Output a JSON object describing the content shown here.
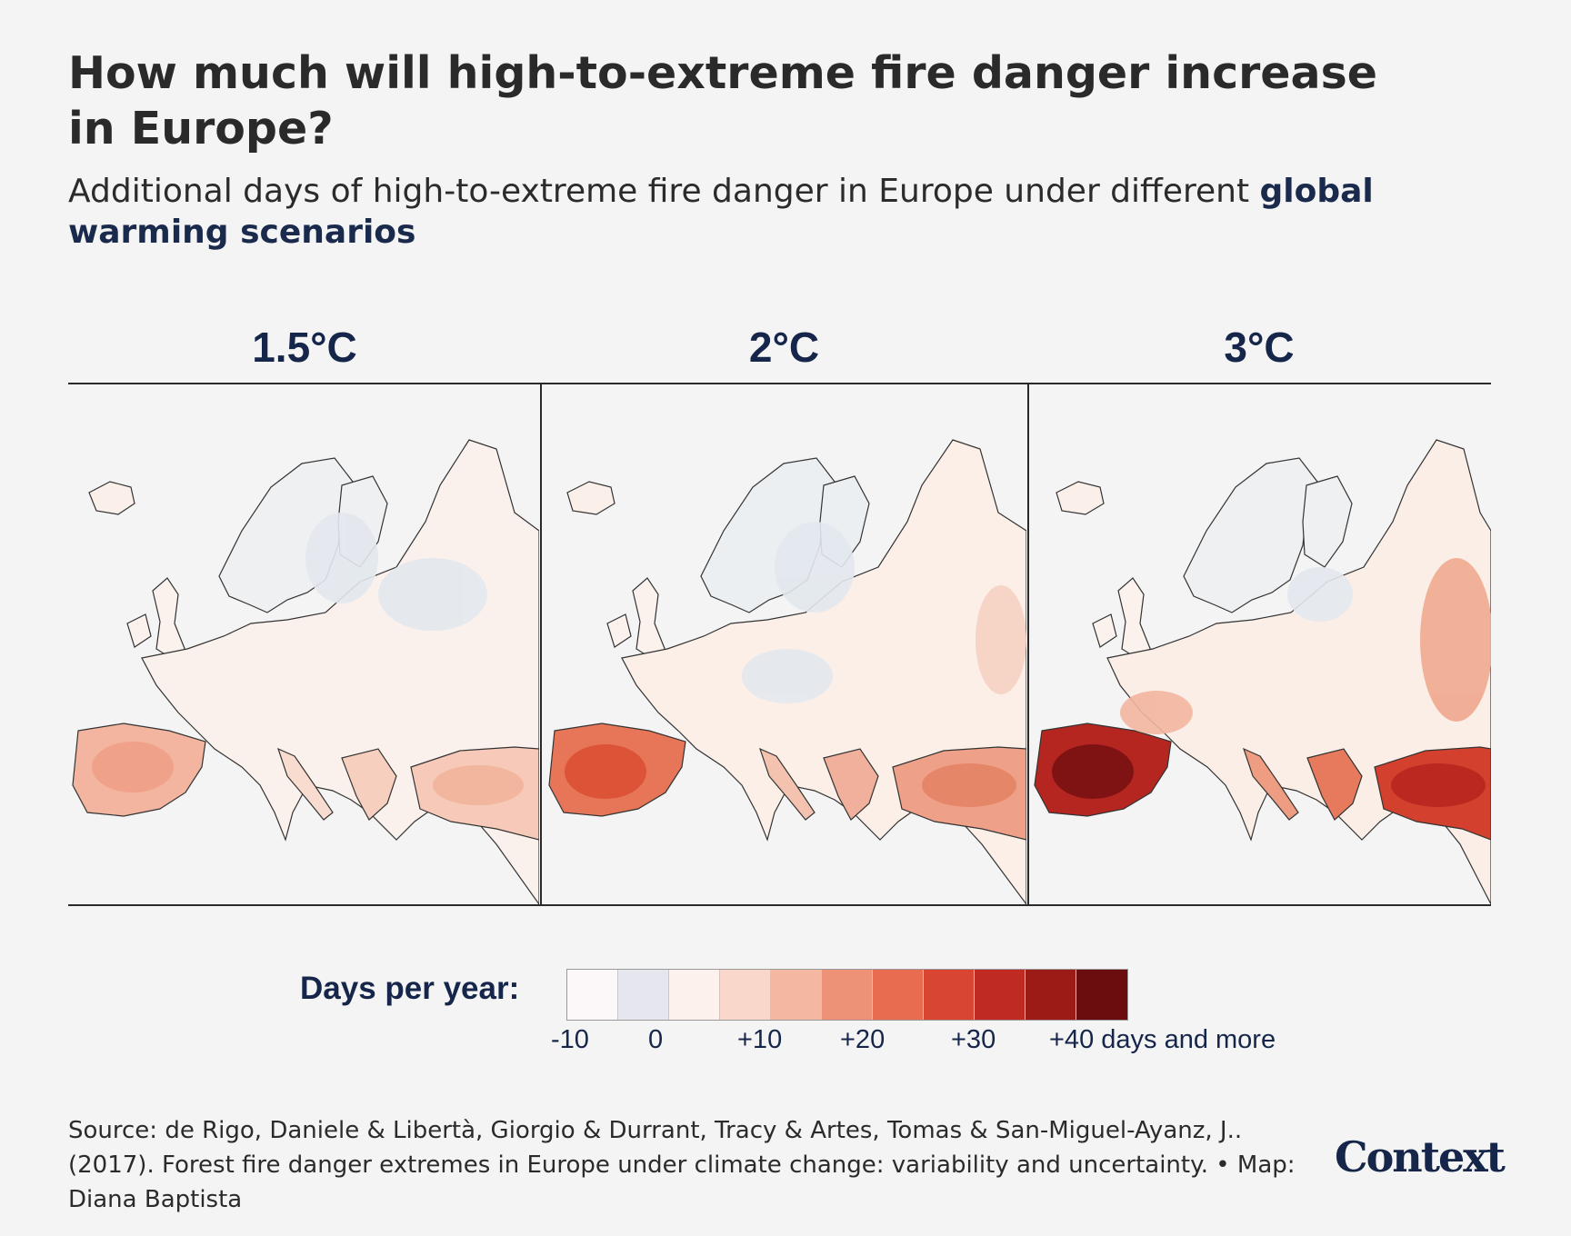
{
  "title": "How much will high-to-extreme fire danger increase in Europe?",
  "subtitle": {
    "text": "Additional days of high-to-extreme fire danger in Europe under different ",
    "highlight": "global warming scenarios"
  },
  "panels": [
    {
      "label": "1.5°C"
    },
    {
      "label": "2°C"
    },
    {
      "label": "3°C"
    }
  ],
  "legend": {
    "title": "Days per year:",
    "colors": [
      "#fcf7f8",
      "#e6e6ee",
      "#fcf1ec",
      "#f9d8cb",
      "#f4b7a2",
      "#ed9276",
      "#e86c50",
      "#d94533",
      "#bf2b22",
      "#9c1b17",
      "#6b0d0e"
    ],
    "ticks": [
      "-10",
      "0",
      "+10",
      "+20",
      "+30",
      "+40 days and more"
    ]
  },
  "source": "Source: de Rigo, Daniele & Libertà, Giorgio & Durrant, Tracy & Artes, Tomas & San-Miguel-Ayanz, J.. (2017). Forest fire danger extremes in Europe under climate change: variability and uncertainty. • Map: Diana Baptista",
  "logo": "Context",
  "colors": {
    "accent": "#16264a",
    "background": "#f4f4f4"
  }
}
